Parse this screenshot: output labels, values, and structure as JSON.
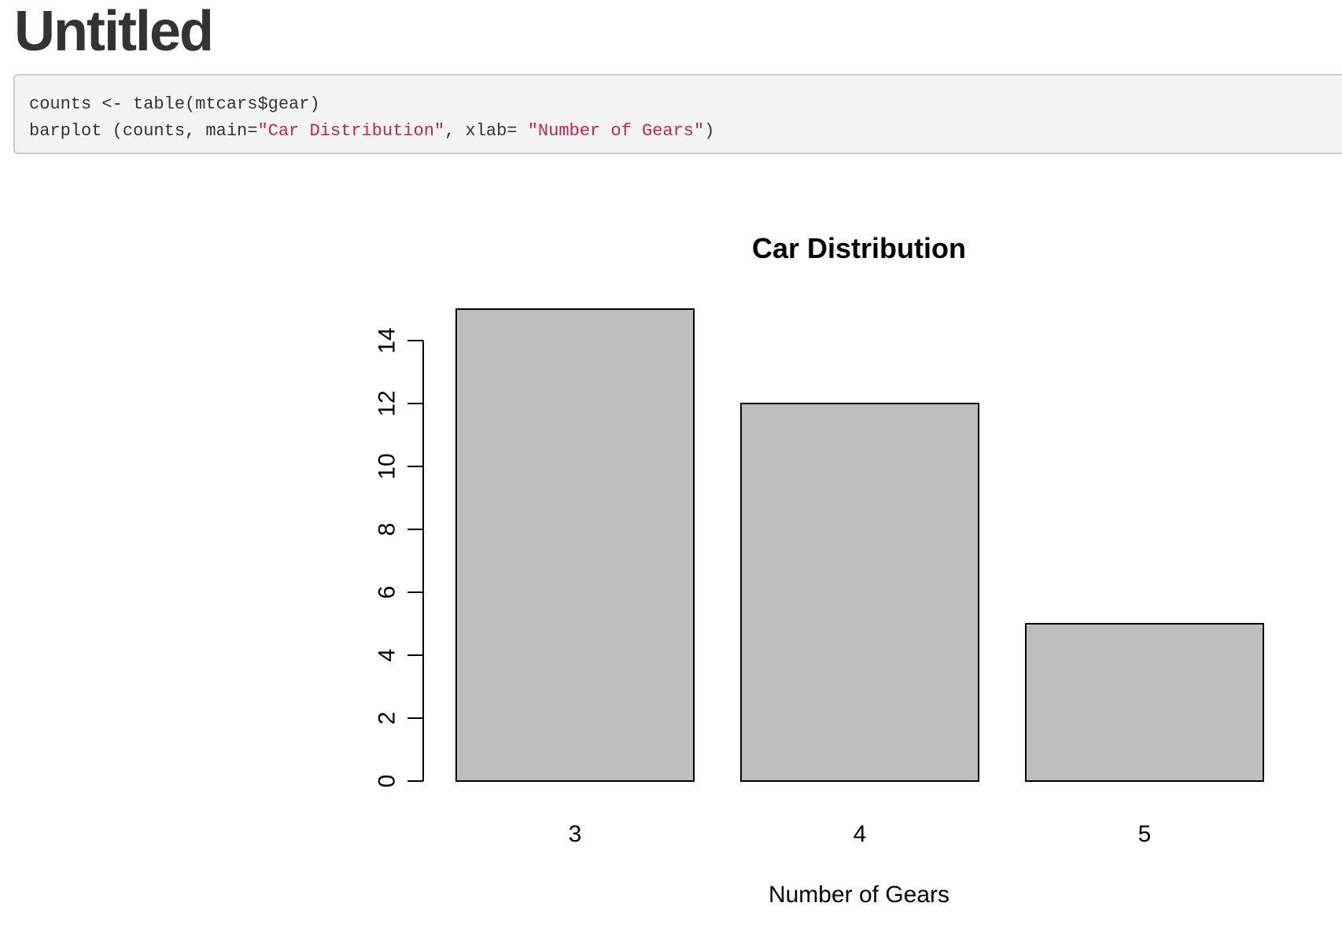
{
  "page": {
    "title": "Untitled"
  },
  "code": {
    "line1": "counts <- table(mtcars$gear)",
    "line2_prefix": "barplot (counts, main=",
    "line2_string1": "\"Car Distribution\"",
    "line2_middle": ", xlab= ",
    "line2_string2": "\"Number of Gears\"",
    "line2_suffix": ")"
  },
  "colors": {
    "bar_fill": "#bebebe",
    "string_literal": "#c7254e",
    "code_background": "#f4f4f4",
    "title_text": "#333333"
  },
  "chart_data": {
    "type": "bar",
    "title": "Car Distribution",
    "xlabel": "Number of Gears",
    "ylabel": "",
    "categories": [
      "3",
      "4",
      "5"
    ],
    "values": [
      15,
      12,
      5
    ],
    "ylim": [
      0,
      14
    ],
    "yticks": [
      "0",
      "2",
      "4",
      "6",
      "8",
      "10",
      "12",
      "14"
    ],
    "grid": false,
    "legend": "none"
  }
}
